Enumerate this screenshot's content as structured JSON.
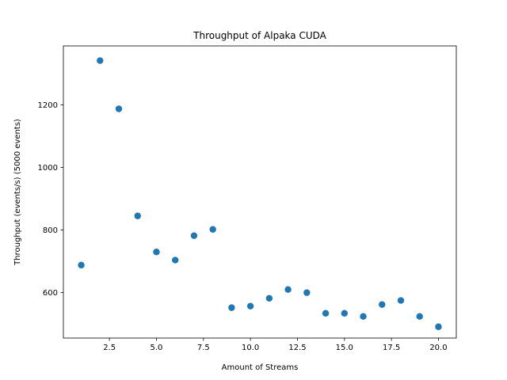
{
  "chart_data": {
    "type": "scatter",
    "title": "Throughput of Alpaka CUDA",
    "xlabel": "Amount of Streams",
    "ylabel": "Throughput (events/s) (5000 events)",
    "xlim": [
      0.05,
      20.95
    ],
    "ylim": [
      455,
      1388
    ],
    "xticks": [
      2.5,
      5.0,
      7.5,
      10.0,
      12.5,
      15.0,
      17.5,
      20.0
    ],
    "xtick_labels": [
      "2.5",
      "5.0",
      "7.5",
      "10.0",
      "12.5",
      "15.0",
      "17.5",
      "20.0"
    ],
    "yticks": [
      600,
      800,
      1000,
      1200
    ],
    "ytick_labels": [
      "600",
      "800",
      "1000",
      "1200"
    ],
    "grid": false,
    "marker_color": "#1f77b4",
    "x": [
      1,
      2,
      3,
      4,
      5,
      6,
      7,
      8,
      9,
      10,
      11,
      12,
      13,
      14,
      15,
      16,
      17,
      18,
      19,
      20
    ],
    "y": [
      688,
      1341,
      1187,
      845,
      730,
      704,
      782,
      802,
      552,
      557,
      582,
      610,
      600,
      534,
      534,
      524,
      562,
      575,
      524,
      491
    ]
  }
}
